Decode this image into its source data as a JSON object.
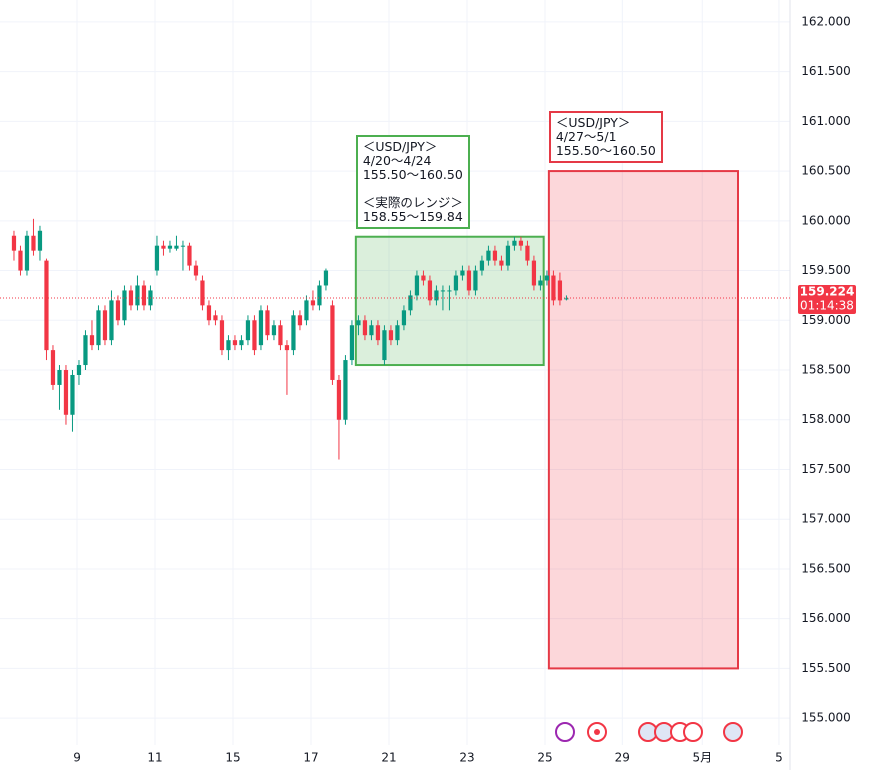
{
  "chart_data": {
    "type": "candlestick",
    "ohlc": [
      [
        159.85,
        159.9,
        159.6,
        159.7
      ],
      [
        159.7,
        159.75,
        159.45,
        159.5
      ],
      [
        159.5,
        159.9,
        159.45,
        159.85
      ],
      [
        159.85,
        160.02,
        159.65,
        159.7
      ],
      [
        159.7,
        159.95,
        159.6,
        159.9
      ],
      [
        159.6,
        159.62,
        158.6,
        158.7
      ],
      [
        158.7,
        158.75,
        158.3,
        158.35
      ],
      [
        158.35,
        158.55,
        158.1,
        158.5
      ],
      [
        158.5,
        158.55,
        157.95,
        158.05
      ],
      [
        158.05,
        158.5,
        157.88,
        158.45
      ],
      [
        158.45,
        158.6,
        158.35,
        158.55
      ],
      [
        158.55,
        158.9,
        158.5,
        158.85
      ],
      [
        158.85,
        159.0,
        158.7,
        158.75
      ],
      [
        158.75,
        159.15,
        158.7,
        159.1
      ],
      [
        159.1,
        159.15,
        158.75,
        158.8
      ],
      [
        158.8,
        159.3,
        158.75,
        159.2
      ],
      [
        159.2,
        159.25,
        158.95,
        159.0
      ],
      [
        159.0,
        159.35,
        158.95,
        159.3
      ],
      [
        159.3,
        159.35,
        159.1,
        159.15
      ],
      [
        159.15,
        159.45,
        159.1,
        159.35
      ],
      [
        159.35,
        159.4,
        159.1,
        159.15
      ],
      [
        159.15,
        159.35,
        159.1,
        159.3
      ],
      [
        159.5,
        159.85,
        159.45,
        159.75
      ],
      [
        159.75,
        159.8,
        159.65,
        159.72
      ],
      [
        159.72,
        159.8,
        159.68,
        159.75
      ],
      [
        159.72,
        159.85,
        159.7,
        159.75
      ],
      [
        159.75,
        159.8,
        159.5,
        159.75
      ],
      [
        159.75,
        159.78,
        159.5,
        159.55
      ],
      [
        159.55,
        159.6,
        159.4,
        159.45
      ],
      [
        159.4,
        159.45,
        159.1,
        159.15
      ],
      [
        159.15,
        159.2,
        158.95,
        159.0
      ],
      [
        159.05,
        159.1,
        158.95,
        159.0
      ],
      [
        159.0,
        159.05,
        158.65,
        158.7
      ],
      [
        158.7,
        158.85,
        158.6,
        158.8
      ],
      [
        158.8,
        158.85,
        158.7,
        158.75
      ],
      [
        158.75,
        158.85,
        158.7,
        158.8
      ],
      [
        158.8,
        159.05,
        158.75,
        159.0
      ],
      [
        159.0,
        159.05,
        158.65,
        158.7
      ],
      [
        158.75,
        159.15,
        158.7,
        159.1
      ],
      [
        159.1,
        159.15,
        158.8,
        158.85
      ],
      [
        158.85,
        159.0,
        158.8,
        158.95
      ],
      [
        158.95,
        159.0,
        158.7,
        158.75
      ],
      [
        158.75,
        158.8,
        158.25,
        158.7
      ],
      [
        158.7,
        159.1,
        158.65,
        159.05
      ],
      [
        159.05,
        159.1,
        158.9,
        158.95
      ],
      [
        159.0,
        159.25,
        158.95,
        159.2
      ],
      [
        159.2,
        159.3,
        159.1,
        159.15
      ],
      [
        159.15,
        159.4,
        159.1,
        159.35
      ],
      [
        159.35,
        159.52,
        159.3,
        159.5
      ],
      [
        159.15,
        159.2,
        158.35,
        158.4
      ],
      [
        158.4,
        158.45,
        157.6,
        158.0
      ],
      [
        158.0,
        158.65,
        157.95,
        158.6
      ],
      [
        158.6,
        159.0,
        158.55,
        158.95
      ],
      [
        158.95,
        159.05,
        158.85,
        159.0
      ],
      [
        159.0,
        159.05,
        158.8,
        158.85
      ],
      [
        158.85,
        159.0,
        158.8,
        158.95
      ],
      [
        158.95,
        159.0,
        158.75,
        158.8
      ],
      [
        158.6,
        158.95,
        158.55,
        158.9
      ],
      [
        158.9,
        158.95,
        158.75,
        158.8
      ],
      [
        158.8,
        159.0,
        158.75,
        158.95
      ],
      [
        158.95,
        159.15,
        158.9,
        159.1
      ],
      [
        159.1,
        159.3,
        159.05,
        159.25
      ],
      [
        159.25,
        159.5,
        159.2,
        159.45
      ],
      [
        159.45,
        159.5,
        159.35,
        159.4
      ],
      [
        159.4,
        159.45,
        159.15,
        159.2
      ],
      [
        159.2,
        159.35,
        159.15,
        159.3
      ],
      [
        159.3,
        159.35,
        159.1,
        159.3
      ],
      [
        159.3,
        159.35,
        159.1,
        159.3
      ],
      [
        159.3,
        159.5,
        159.25,
        159.45
      ],
      [
        159.45,
        159.55,
        159.4,
        159.5
      ],
      [
        159.5,
        159.55,
        159.25,
        159.3
      ],
      [
        159.3,
        159.55,
        159.25,
        159.5
      ],
      [
        159.5,
        159.65,
        159.45,
        159.6
      ],
      [
        159.6,
        159.75,
        159.55,
        159.7
      ],
      [
        159.7,
        159.75,
        159.55,
        159.6
      ],
      [
        159.6,
        159.65,
        159.5,
        159.55
      ],
      [
        159.55,
        159.8,
        159.5,
        159.75
      ],
      [
        159.75,
        159.84,
        159.7,
        159.8
      ],
      [
        159.8,
        159.84,
        159.7,
        159.75
      ],
      [
        159.75,
        159.8,
        159.55,
        159.6
      ],
      [
        159.6,
        159.65,
        159.3,
        159.35
      ],
      [
        159.35,
        159.45,
        159.3,
        159.4
      ],
      [
        159.4,
        159.5,
        159.35,
        159.45
      ],
      [
        159.45,
        159.5,
        159.15,
        159.2
      ],
      [
        159.4,
        159.48,
        159.15,
        159.2
      ],
      [
        159.22,
        159.25,
        159.2,
        159.22
      ]
    ],
    "up_color": "#089981",
    "down_color": "#f23645",
    "ylim": [
      154.73,
      162.22
    ],
    "yticks": [
      {
        "value": 155,
        "label": "155.000"
      },
      {
        "value": 155.5,
        "label": "155.500"
      },
      {
        "value": 156,
        "label": "156.000"
      },
      {
        "value": 156.5,
        "label": "156.500"
      },
      {
        "value": 157,
        "label": "157.000"
      },
      {
        "value": 157.5,
        "label": "157.500"
      },
      {
        "value": 158,
        "label": "158.000"
      },
      {
        "value": 158.5,
        "label": "158.500"
      },
      {
        "value": 159,
        "label": "159.000"
      },
      {
        "value": 159.5,
        "label": "159.500"
      },
      {
        "value": 160,
        "label": "160.000"
      },
      {
        "value": 160.5,
        "label": "160.500"
      },
      {
        "value": 161,
        "label": "161.000"
      },
      {
        "value": 161.5,
        "label": "161.500"
      },
      {
        "value": 162,
        "label": "162.000"
      }
    ],
    "xlim": [
      -2.15,
      119.4
    ],
    "xticks": [
      {
        "value": 9.7,
        "label": "9"
      },
      {
        "value": 21.7,
        "label": "11"
      },
      {
        "value": 33.7,
        "label": "15"
      },
      {
        "value": 45.7,
        "label": "17"
      },
      {
        "value": 57.7,
        "label": "21"
      },
      {
        "value": 69.7,
        "label": "23"
      },
      {
        "value": 81.7,
        "label": "25"
      },
      {
        "value": 93.6,
        "label": "29"
      },
      {
        "value": 105.9,
        "label": "5月"
      },
      {
        "value": 117.7,
        "label": "5"
      }
    ],
    "grid": true,
    "last_price": {
      "value": 159.224,
      "label": "159.224",
      "countdown": "01:14:38",
      "color": "#f23645"
    },
    "annotations": [
      {
        "x0": 52.6,
        "x1": 81.5,
        "y0": 158.55,
        "y1": 159.84,
        "color": "#4caf50",
        "fill": "rgba(76,175,80,0.2)",
        "labels": [
          [
            "＜USD/JPY＞",
            "4/20〜4/24",
            "155.50〜160.50"
          ],
          [
            "＜実際のレンジ＞",
            "158.55〜159.84"
          ]
        ]
      },
      {
        "x0": 82.3,
        "x1": 111.4,
        "y0": 155.5,
        "y1": 160.5,
        "color": "#e53946",
        "fill": "rgba(242,54,69,0.2)",
        "labels": [
          [
            "＜USD/JPY＞",
            "4/27〜5/1",
            "155.50〜160.50"
          ]
        ]
      }
    ]
  }
}
